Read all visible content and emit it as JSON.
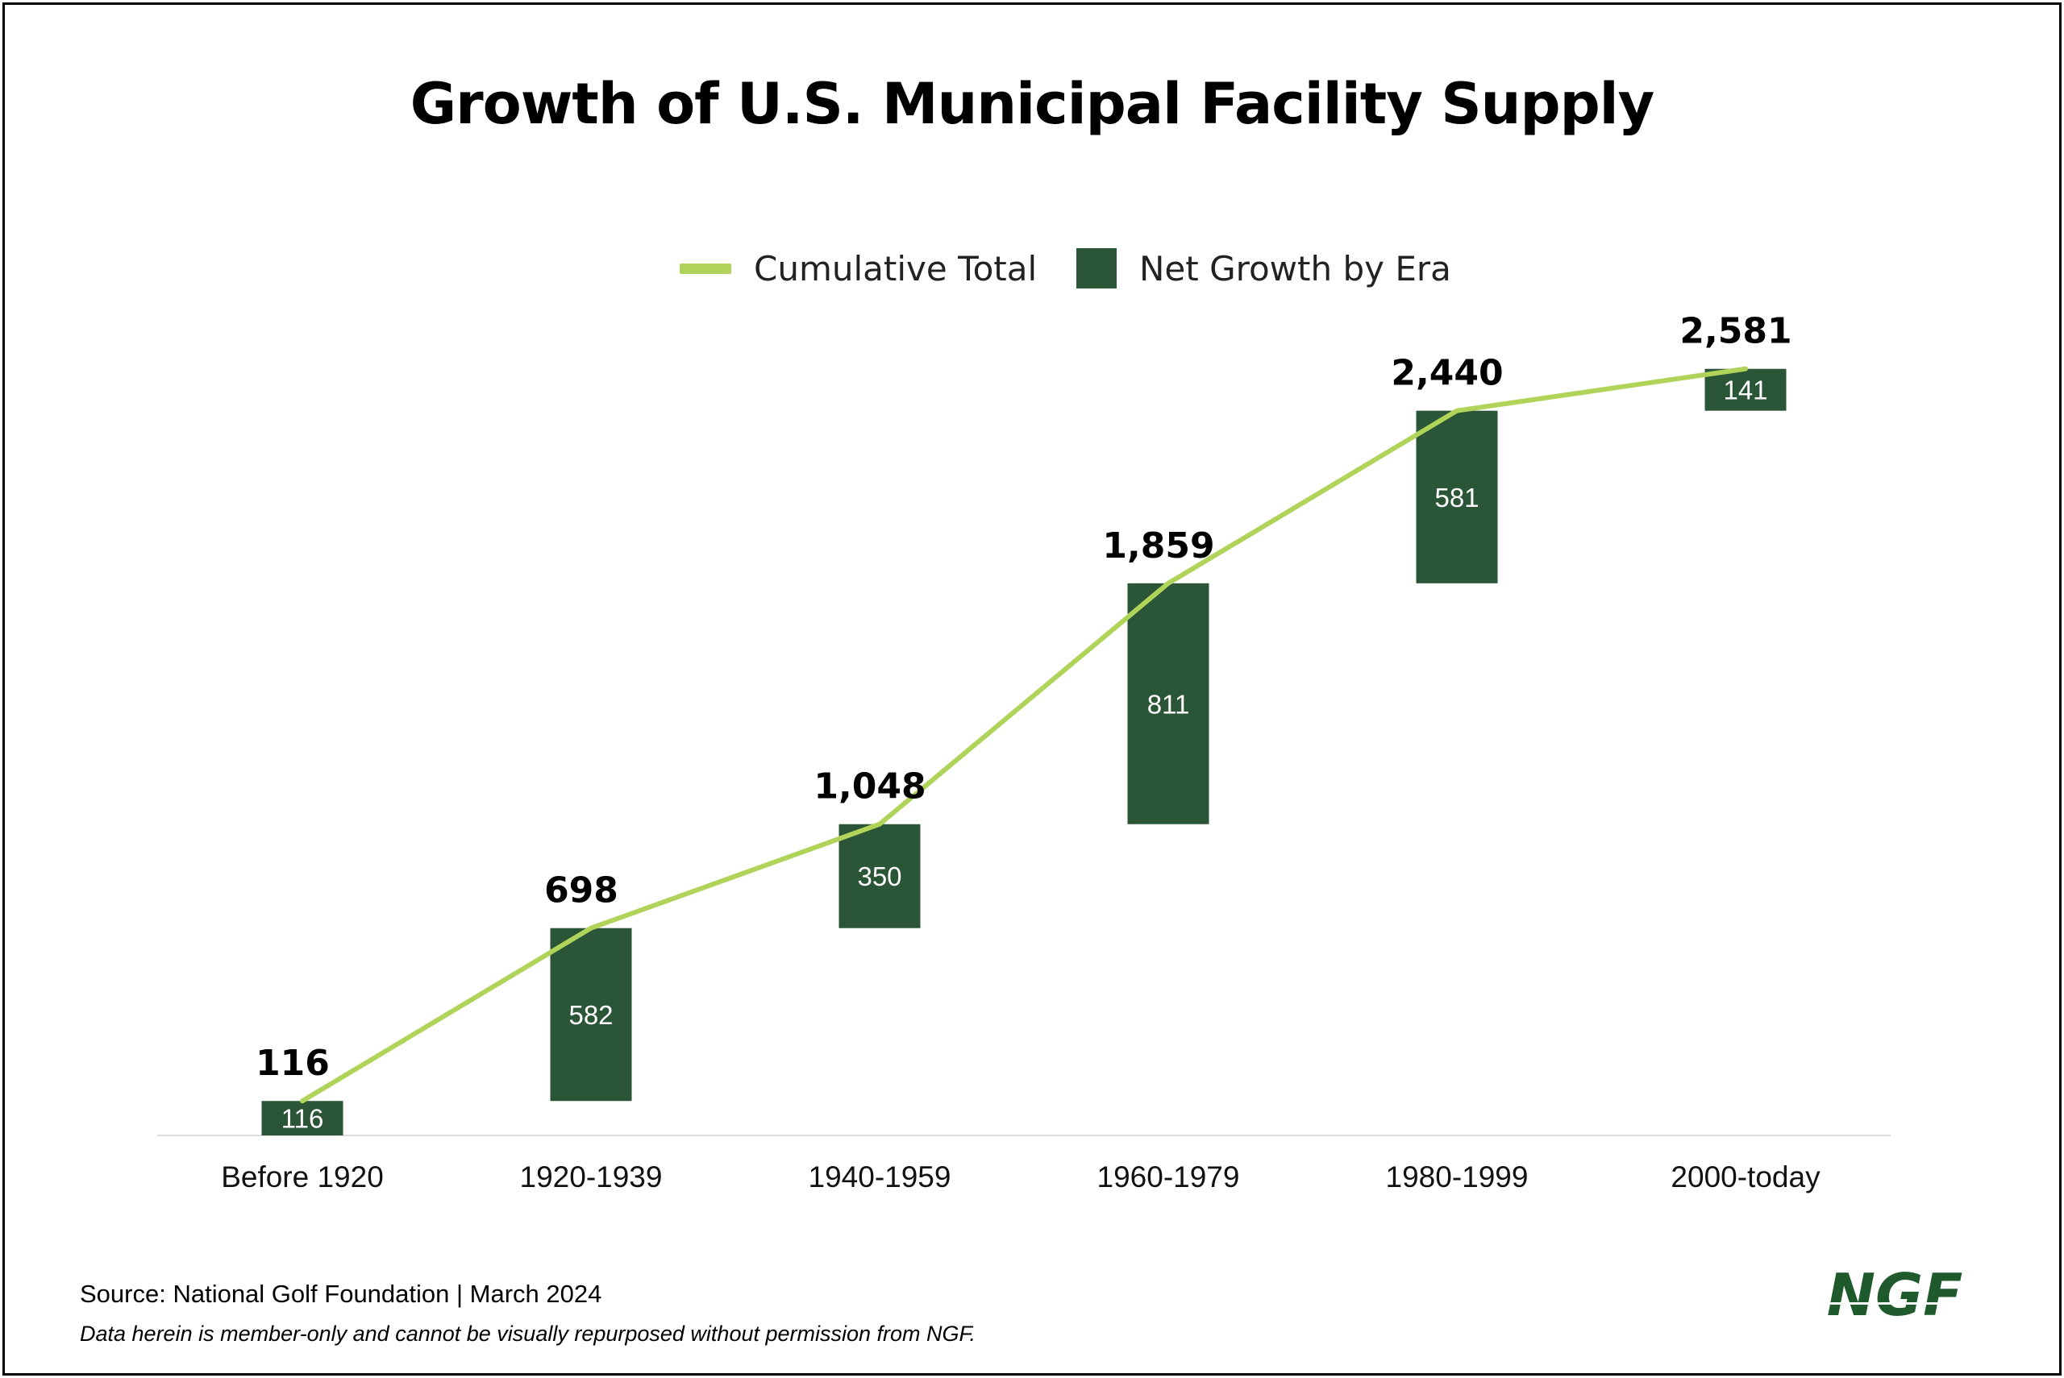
{
  "colors": {
    "line": "#b0d45a",
    "bar": "#2b5537",
    "bar_label": "#ffffff",
    "total_label": "#000000",
    "axis": "#dddddd",
    "logo": "#1e5a2c"
  },
  "chart_data": {
    "type": "bar",
    "title": "Growth of U.S. Municipal Facility Supply",
    "categories": [
      "Before 1920",
      "1920-1939",
      "1940-1959",
      "1960-1979",
      "1980-1999",
      "2000-today"
    ],
    "series": [
      {
        "name": "Net Growth by Era",
        "type": "bar",
        "values": [
          116,
          582,
          350,
          811,
          581,
          141
        ],
        "labels": [
          "116",
          "582",
          "350",
          "811",
          "581",
          "141"
        ]
      },
      {
        "name": "Cumulative Total",
        "type": "line",
        "values": [
          116,
          698,
          1048,
          1859,
          2440,
          2581
        ],
        "labels": [
          "116",
          "698",
          "1,048",
          "1,859",
          "2,440",
          "2,581"
        ]
      }
    ],
    "ylim": [
      0,
      2800
    ],
    "grid": false,
    "legend": "top-center"
  },
  "footer": {
    "source": "Source: National Golf Foundation | March 2024",
    "disclaimer": "Data herein is member-only and cannot be visually repurposed without permission from NGF."
  },
  "logo": {
    "text": "NGF"
  }
}
